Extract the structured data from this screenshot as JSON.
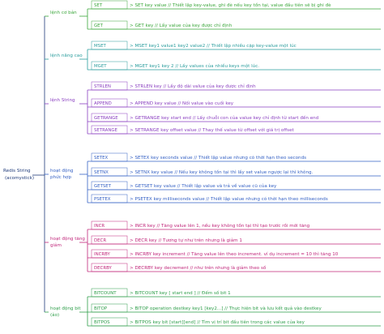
{
  "root": [
    "Redis String",
    "(acomystick)"
  ],
  "groups": [
    {
      "label": [
        "lệnh cơ bản"
      ],
      "color": "#3aa63a",
      "items": [
        {
          "command": "SET",
          "description": "> SET key value // Thiết lập key-value, ghi đè nếu key tồn tại, value đầu tiên sẽ bị ghi đè"
        },
        {
          "command": "GET",
          "description": "> GET key // Lấy value của key được chỉ định"
        }
      ]
    },
    {
      "label": [
        "lệnh nâng cao"
      ],
      "color": "#2a9d9d",
      "items": [
        {
          "command": "MSET",
          "description": "> MSET key1 value1 key2 value2 // Thiết lập nhiều cặp key-value một lúc"
        },
        {
          "command": "MGET",
          "description": "> MGET key1 key 2 // Lấy values của nhiều keys một lúc."
        }
      ]
    },
    {
      "label": [
        "lệnh String"
      ],
      "color": "#8a3fc0",
      "items": [
        {
          "command": "STRLEN",
          "description": "> STRLEN key // Lấy độ dài value của key được chỉ định"
        },
        {
          "command": "APPEND",
          "description": "> APPEND key value // Nối value vào cuối key"
        },
        {
          "command": "GETRANGE",
          "description": "> GETRANGE key start end // Lấy chuỗi con của value key chỉ định từ start đến end"
        },
        {
          "command": "SETRANGE",
          "description": "> SETRANGE key offset value // Thay thế value từ offset với giá trị offset"
        }
      ]
    },
    {
      "label": [
        "hoạt động",
        "phức hợp"
      ],
      "color": "#3561c4",
      "items": [
        {
          "command": "SETEX",
          "description": "> SETEX key seconds value // Thiết lập value nhưng có thời hạn theo seconds"
        },
        {
          "command": "SETNX",
          "description": "> SETNX key value // Nếu key không tồn tại thì lấy set value ngược lại thì không."
        },
        {
          "command": "GETSET",
          "description": "> GETSET key value // Thiết lập value và trả về value cũ của key"
        },
        {
          "command": "PSETEX",
          "description": "> PSETEX key milliseconds value // Thiết lập value nhưng có thời hạn theo milliseconds"
        }
      ]
    },
    {
      "label": [
        "hoạt động tăng",
        "giảm"
      ],
      "color": "#c0267a",
      "items": [
        {
          "command": "INCR",
          "description": "> INCR key // Tăng value lên 1, nếu key không tồn tại thì tạo trước rồi mới tăng"
        },
        {
          "command": "DECR",
          "description": "> DECR key // Tương tự như trên nhưng là giảm 1"
        },
        {
          "command": "INCRBY",
          "description": "> INCRBY key increment // Tăng value lên theo increment. ví dụ increment = 10 thì tăng 10"
        },
        {
          "command": "DECRBY",
          "description": "> DECRBY key decrement // như trên nhưng là giảm theo số"
        }
      ]
    },
    {
      "label": [
        "hoạt động bit",
        "(ảo)"
      ],
      "color": "#2e9e4a",
      "items": [
        {
          "command": "BITCOUNT",
          "description": "> BITCOUNT key [ start end ] // Đếm số bit 1"
        },
        {
          "command": "BITOP",
          "description": "> BITOP operation destkey key1 [key2...] // Thực hiện bit và lưu kết quả vào destkey"
        },
        {
          "command": "BITPOS",
          "description": "> BITPOS key bit [start][end] // Tìm vị trí bit đầu tiên trong các value của key"
        }
      ]
    }
  ]
}
